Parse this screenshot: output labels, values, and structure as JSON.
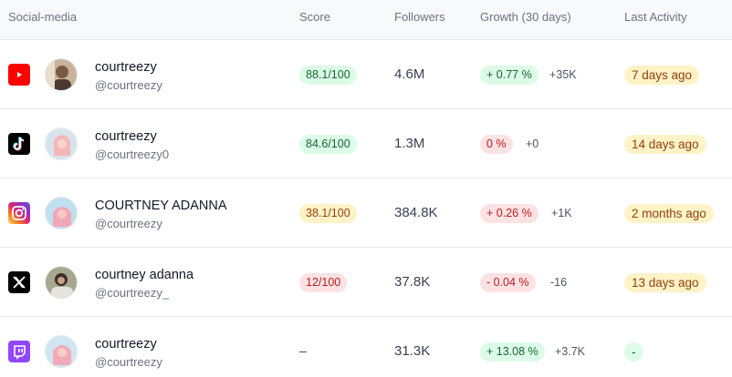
{
  "headers": {
    "social_media": "Social-media",
    "score": "Score",
    "followers": "Followers",
    "growth": "Growth (30 days)",
    "last_activity": "Last Activity"
  },
  "colors": {
    "youtube": "#ff0000",
    "tiktok": "#000000",
    "x": "#000000",
    "twitch": "#9146ff",
    "pill_green": "#dcfce7",
    "pill_red": "#fde2e4",
    "pill_yellow": "#fef3c7"
  },
  "rows": [
    {
      "platform_icon": "youtube-icon",
      "name": "courtreezy",
      "handle": "@courtreezy",
      "score": "88.1/100",
      "followers": "4.6M",
      "growth_pct": "+ 0.77 %",
      "growth_abs": "+35K",
      "last_activity": "7 days ago"
    },
    {
      "platform_icon": "tiktok-icon",
      "name": "courtreezy",
      "handle": "@courtreezy0",
      "score": "84.6/100",
      "followers": "1.3M",
      "growth_pct": "0 %",
      "growth_abs": "+0",
      "last_activity": "14 days ago"
    },
    {
      "platform_icon": "instagram-icon",
      "name": "COURTNEY ADANNA",
      "handle": "@courtreezy",
      "score": "38.1/100",
      "followers": "384.8K",
      "growth_pct": "+ 0.26 %",
      "growth_abs": "+1K",
      "last_activity": "2 months ago"
    },
    {
      "platform_icon": "x-icon",
      "name": "courtney adanna",
      "handle": "@courtreezy_",
      "score": "12/100",
      "followers": "37.8K",
      "growth_pct": "- 0.04 %",
      "growth_abs": "-16",
      "last_activity": "13 days ago"
    },
    {
      "platform_icon": "twitch-icon",
      "name": "courtreezy",
      "handle": "@courtreezy",
      "score": "–",
      "followers": "31.3K",
      "growth_pct": "+ 13.08 %",
      "growth_abs": "+3.7K",
      "last_activity": "-"
    }
  ]
}
